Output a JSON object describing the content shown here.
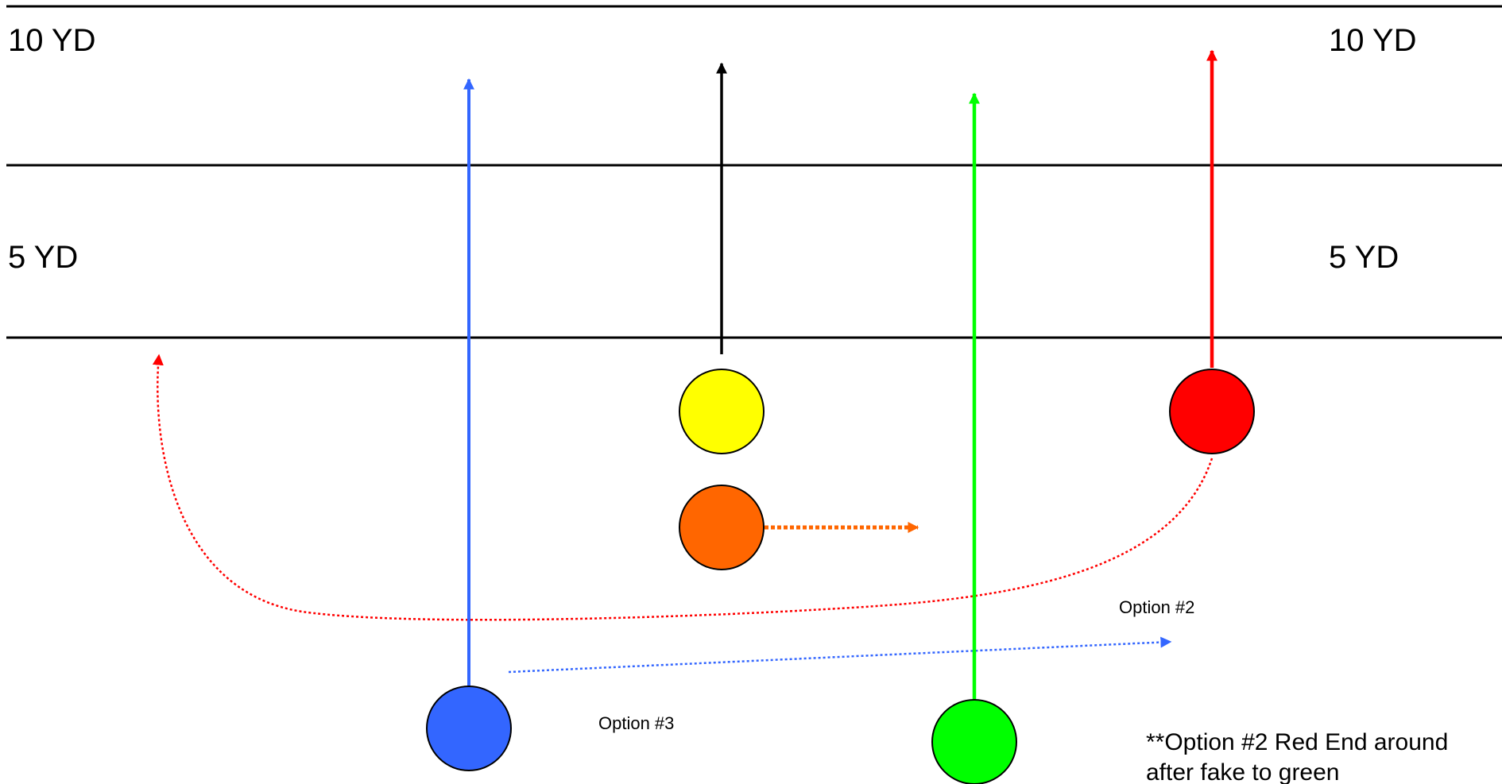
{
  "yard_markers": {
    "ten_left": "10 YD",
    "ten_right": "10 YD",
    "five_left": "5 YD",
    "five_right": "5 YD"
  },
  "option_labels": {
    "option_2": "Option #2",
    "option_3": "Option #3"
  },
  "note": {
    "line1": "**Option #2 Red End around",
    "line2": "after fake to green"
  },
  "players": [
    {
      "name": "blue",
      "color": "#3366ff"
    },
    {
      "name": "yellow",
      "color": "#ffff00"
    },
    {
      "name": "orange",
      "color": "#ff6600"
    },
    {
      "name": "green",
      "color": "#00ff00"
    },
    {
      "name": "red",
      "color": "#ff0000"
    }
  ],
  "route_colors": {
    "blue": "#3366ff",
    "black": "#000000",
    "green": "#00ff00",
    "red": "#ff0000",
    "orange": "#ff6600"
  }
}
